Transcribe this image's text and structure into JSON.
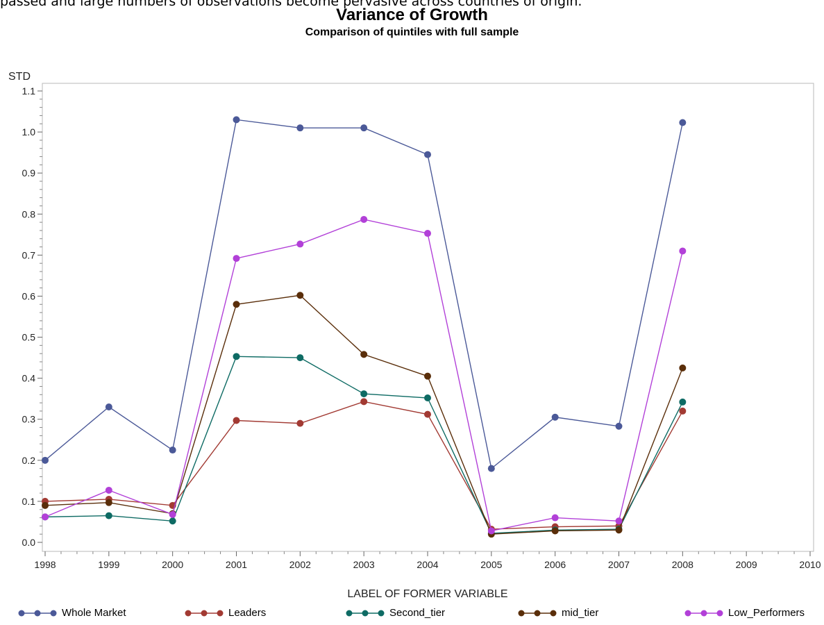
{
  "page": {
    "top_text": "passed and large numbers of observations become pervasive across countries of origin."
  },
  "chart_data": {
    "type": "line",
    "title": "Variance of Growth",
    "subtitle": "Comparison of quintiles with full sample",
    "xlabel": "LABEL OF FORMER VARIABLE",
    "ylabel": "STD",
    "x": [
      1998,
      1999,
      2000,
      2001,
      2002,
      2003,
      2004,
      2005,
      2006,
      2007,
      2008
    ],
    "x_ticks": [
      "1998",
      "1999",
      "2000",
      "2001",
      "2002",
      "2003",
      "2004",
      "2005",
      "2006",
      "2007",
      "2008",
      "2009",
      "2010"
    ],
    "xlim": [
      1998,
      2010
    ],
    "y_ticks": [
      "0.0",
      "0.1",
      "0.2",
      "0.3",
      "0.4",
      "0.5",
      "0.6",
      "0.7",
      "0.8",
      "0.9",
      "1.0",
      "1.1"
    ],
    "ylim": [
      0,
      1.1
    ],
    "grid": false,
    "legend_position": "bottom",
    "series": [
      {
        "name": "Whole Market",
        "color": "#4b5998",
        "values": [
          0.2,
          0.33,
          0.225,
          1.03,
          1.01,
          1.01,
          0.945,
          0.18,
          0.305,
          0.283,
          1.023
        ]
      },
      {
        "name": "Leaders",
        "color": "#a23a33",
        "values": [
          0.1,
          0.105,
          0.09,
          0.297,
          0.29,
          0.343,
          0.312,
          0.032,
          0.038,
          0.04,
          0.32
        ]
      },
      {
        "name": "Second_tier",
        "color": "#0e6b64",
        "values": [
          0.062,
          0.065,
          0.052,
          0.453,
          0.45,
          0.362,
          0.352,
          0.022,
          0.03,
          0.032,
          0.342
        ]
      },
      {
        "name": "mid_tier",
        "color": "#5a2e0a",
        "values": [
          0.09,
          0.097,
          0.07,
          0.58,
          0.602,
          0.458,
          0.405,
          0.02,
          0.028,
          0.03,
          0.425
        ]
      },
      {
        "name": "Low_Performers",
        "color": "#b240d8",
        "values": [
          0.062,
          0.127,
          0.068,
          0.692,
          0.727,
          0.787,
          0.753,
          0.028,
          0.06,
          0.052,
          0.71
        ]
      }
    ]
  }
}
